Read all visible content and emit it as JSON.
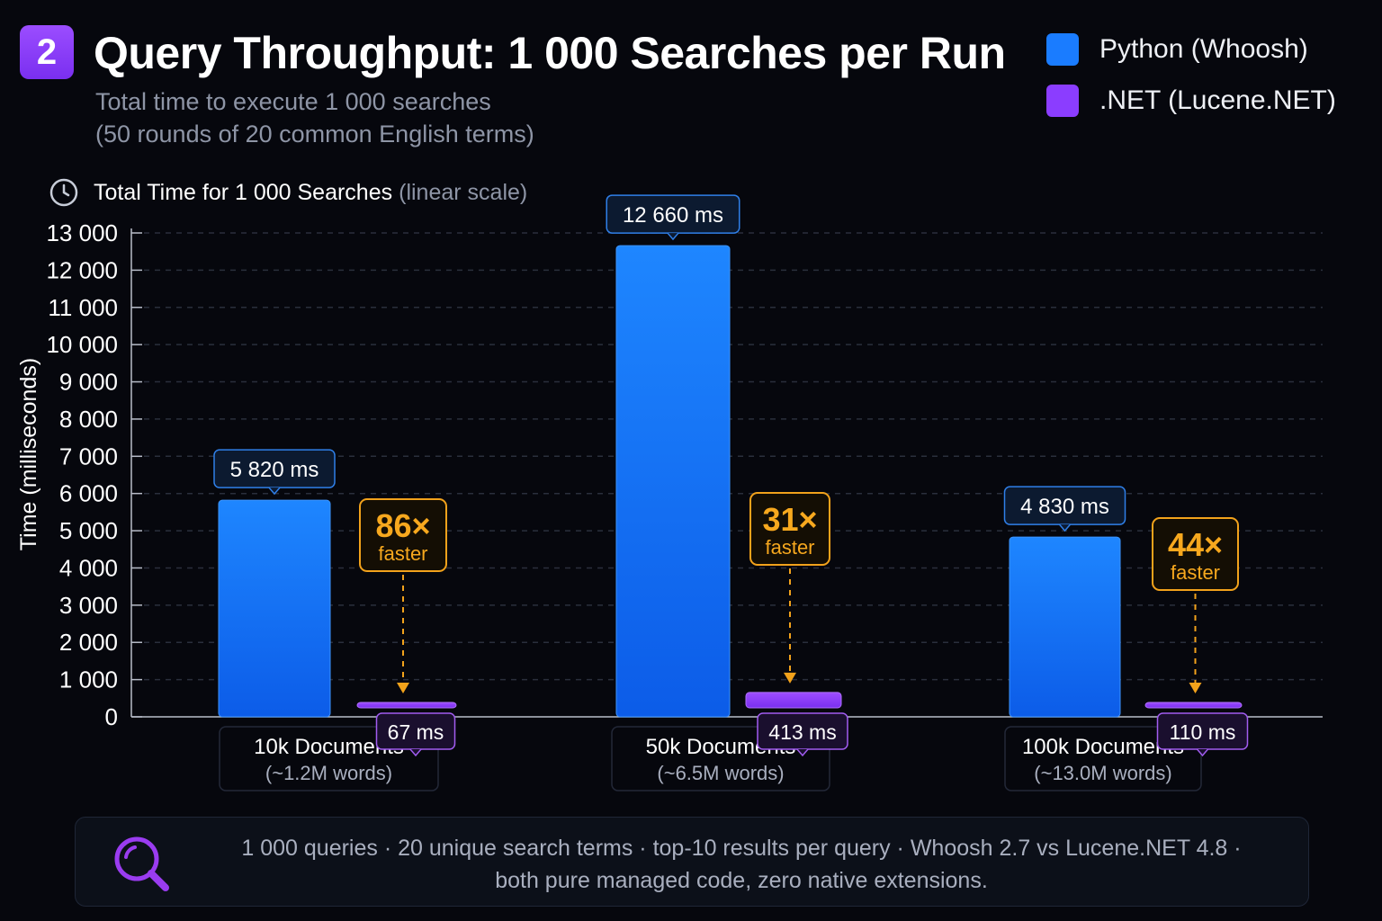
{
  "header": {
    "badge": "2",
    "title": "Query Throughput: 1 000 Searches per Run",
    "subtitle_line1": "Total time to execute 1 000 searches",
    "subtitle_line2": "(50 rounds of 20 common English terms)"
  },
  "legend": [
    {
      "label": "Python (Whoosh)",
      "color": "#1a7cff"
    },
    {
      "label": ".NET (Lucene.NET)",
      "color": "#8b3dff"
    }
  ],
  "chart_heading": {
    "icon": "clock-icon",
    "text": "Total Time for 1 000 Searches",
    "scale_note": "(linear scale)"
  },
  "chart_data": {
    "type": "bar",
    "ylabel": "Time (milliseconds)",
    "ylim": [
      0,
      13000
    ],
    "yticks": [
      0,
      1000,
      2000,
      3000,
      4000,
      5000,
      6000,
      7000,
      8000,
      9000,
      10000,
      11000,
      12000,
      13000
    ],
    "ytick_labels": [
      "0",
      "1 000",
      "2 000",
      "3 000",
      "4 000",
      "5 000",
      "6 000",
      "7 000",
      "8 000",
      "9 000",
      "10 000",
      "11 000",
      "12 000",
      "13 000"
    ],
    "grid": true,
    "legend_position": "top-right",
    "categories": [
      {
        "label": "10k Documents",
        "sublabel": "(~1.2M words)"
      },
      {
        "label": "50k Documents",
        "sublabel": "(~6.5M words)"
      },
      {
        "label": "100k Documents",
        "sublabel": "(~13.0M words)"
      }
    ],
    "series": [
      {
        "name": "Python (Whoosh)",
        "color": "#1a7cff",
        "values": [
          5820,
          12660,
          4830
        ],
        "value_labels": [
          "5 820 ms",
          "12 660 ms",
          "4 830 ms"
        ]
      },
      {
        "name": ".NET (Lucene.NET)",
        "color": "#8b3dff",
        "values": [
          67,
          413,
          110
        ],
        "value_labels": [
          "67 ms",
          "413 ms",
          "110 ms"
        ]
      }
    ],
    "speedups": [
      {
        "value": "86×",
        "label": "faster"
      },
      {
        "value": "31×",
        "label": "faster"
      },
      {
        "value": "44×",
        "label": "faster"
      }
    ]
  },
  "footer": {
    "icon": "search-icon",
    "line1": "1 000 queries · 20 unique search terms · top-10 results per query · Whoosh 2.7 vs Lucene.NET 4.8 ·",
    "line2": "both pure managed code, zero native extensions."
  }
}
